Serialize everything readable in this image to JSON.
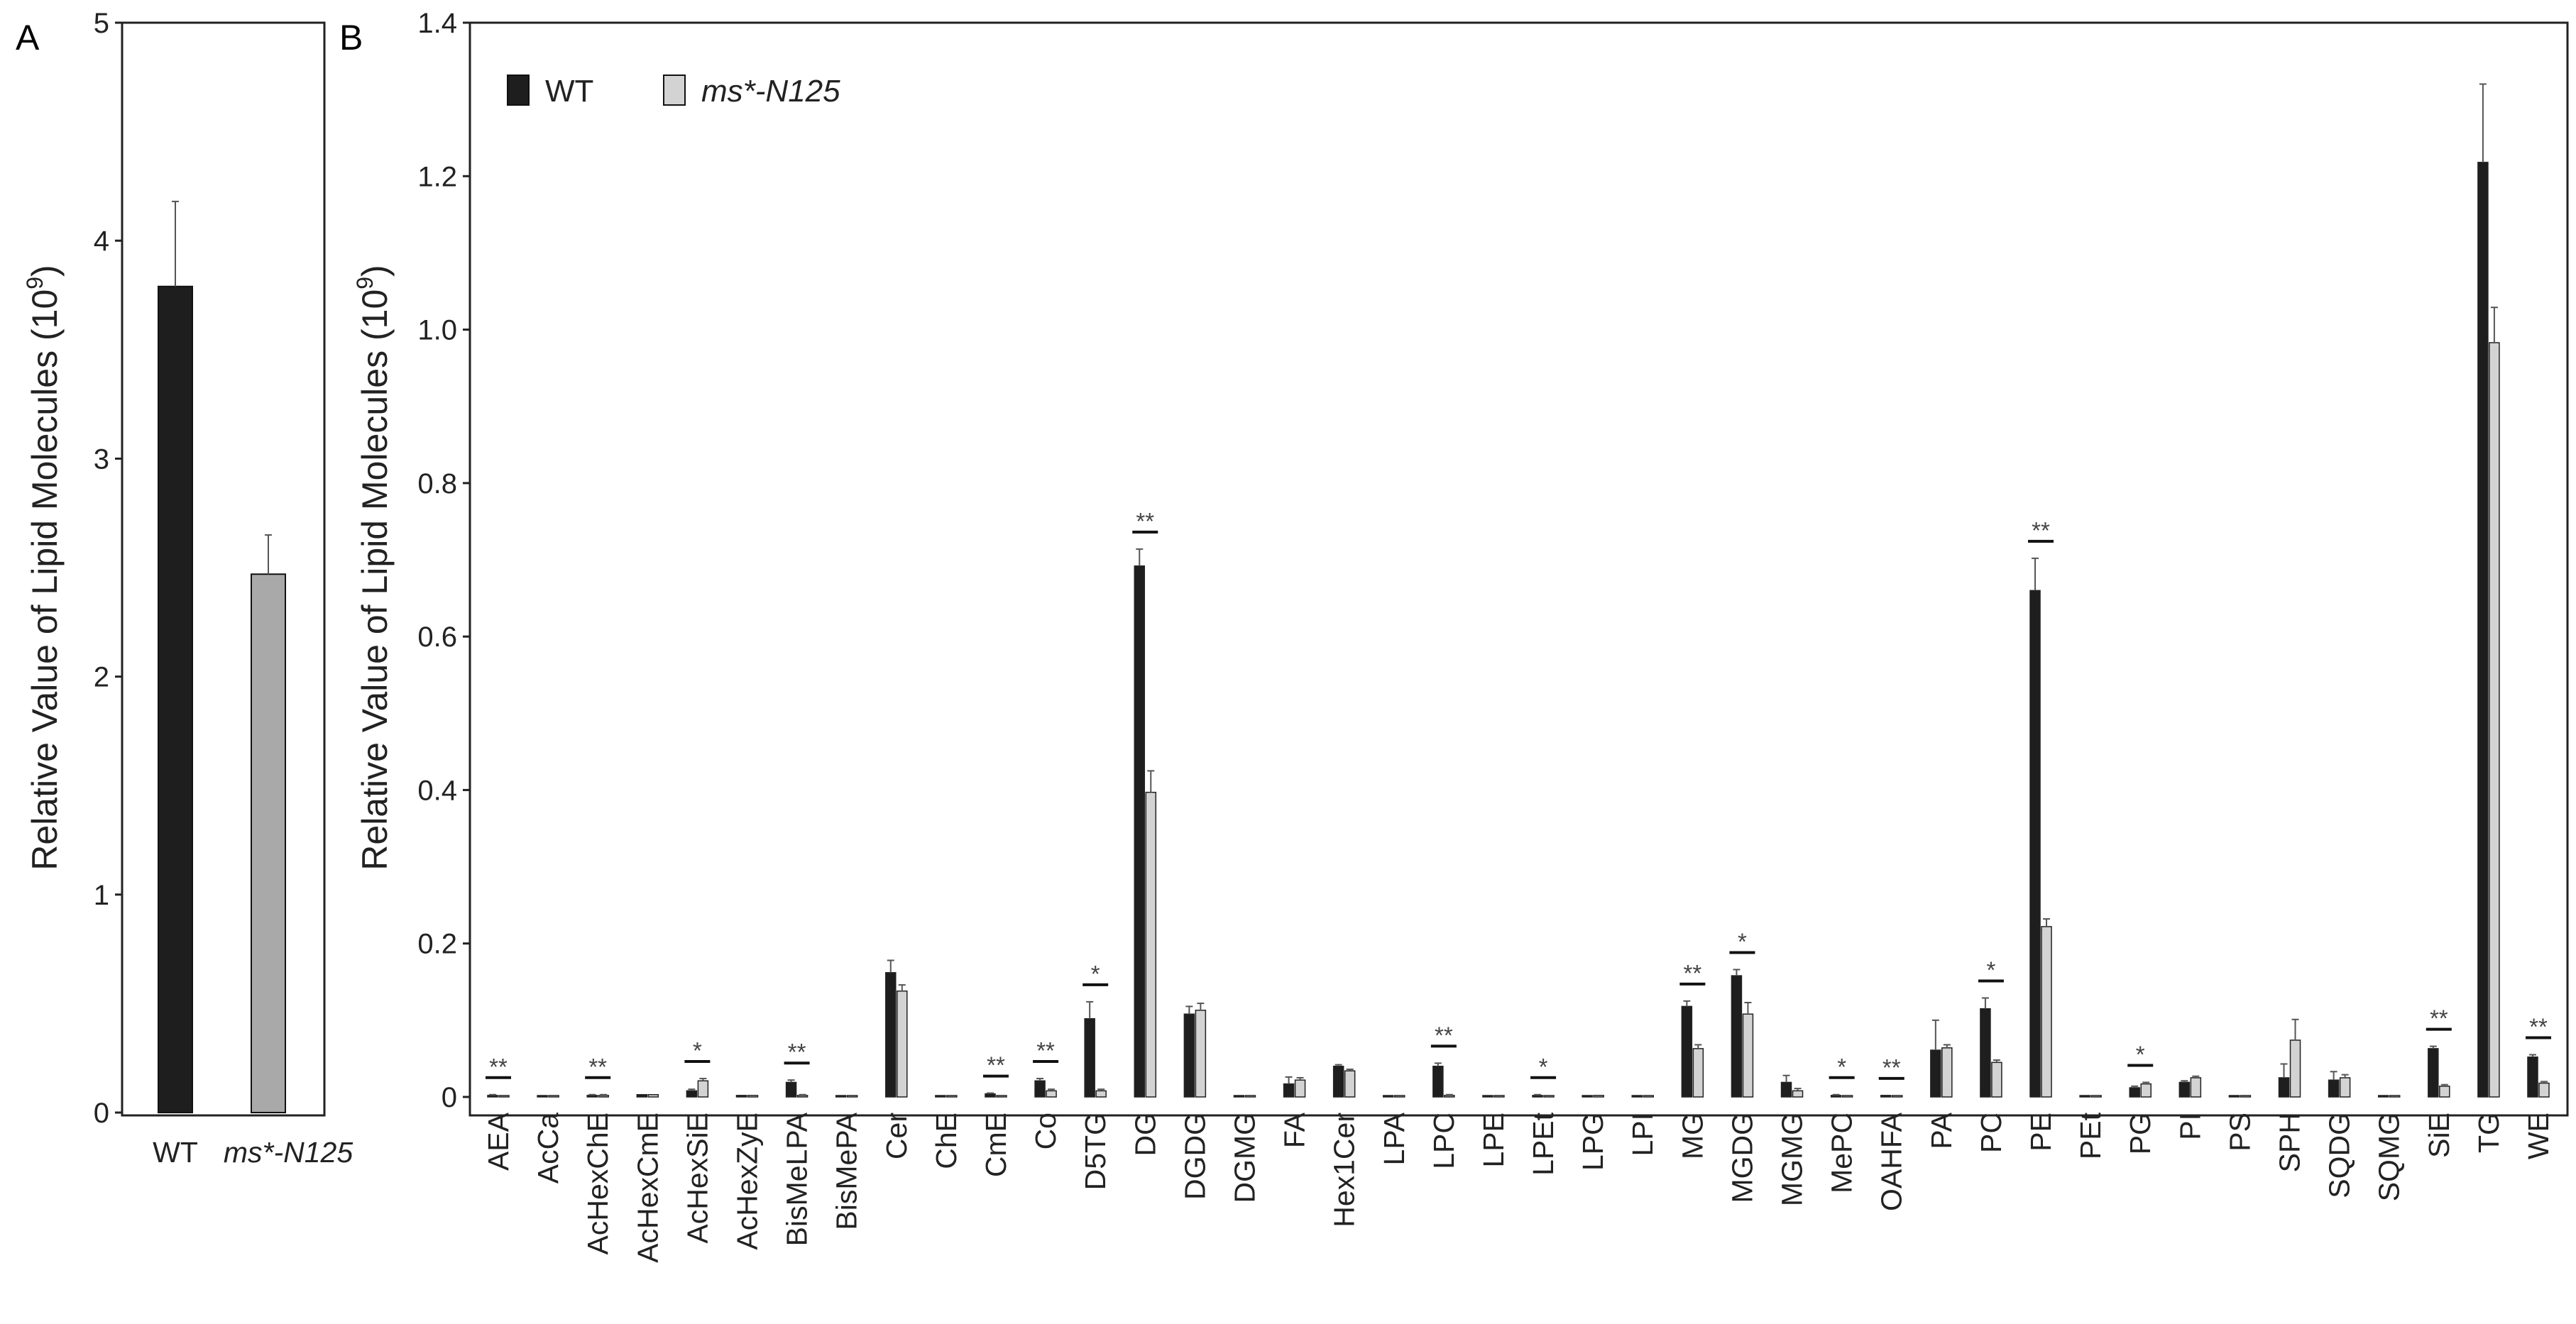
{
  "panels": {
    "a": {
      "letter": "A"
    },
    "b": {
      "letter": "B"
    }
  },
  "colors": {
    "wt": "#1e1e1e",
    "mutant_a": "#a9a9a9",
    "mutant_b": "#d3d3d3",
    "axis": "#222222",
    "error": "#555555"
  },
  "chart_data": [
    {
      "type": "bar",
      "panel": "A",
      "categories": [
        "WT",
        "ms*-N125"
      ],
      "values": [
        3.79,
        2.47
      ],
      "errors": [
        0.39,
        0.18
      ],
      "title": "",
      "xlabel": "",
      "ylabel": "Relative Value of Lipid Molecules (10",
      "ylabel_sup": "9",
      "ylabel_tail": ")",
      "ylim": [
        0,
        5
      ],
      "yticks": [
        "0",
        "1",
        "2",
        "3",
        "4",
        "5"
      ],
      "grid": false,
      "legend": "none"
    },
    {
      "type": "bar",
      "panel": "B",
      "categories": [
        "AEA",
        "AcCa",
        "AcHexChE",
        "AcHexCmE",
        "AcHexSiE",
        "AcHexZyE",
        "BisMeLPA",
        "BisMePA",
        "Cer",
        "ChE",
        "CmE",
        "Co",
        "D5TG",
        "DG",
        "DGDG",
        "DGMG",
        "FA",
        "Hex1Cer",
        "LPA",
        "LPC",
        "LPE",
        "LPEt",
        "LPG",
        "LPI",
        "MG",
        "MGDG",
        "MGMG",
        "MePC",
        "OAHFA",
        "PA",
        "PC",
        "PE",
        "PEt",
        "PG",
        "PI",
        "PS",
        "SPH",
        "SQDG",
        "SQMG",
        "SiE",
        "TG",
        "WE"
      ],
      "series": [
        {
          "name": "WT",
          "values": [
            0.002,
            0.001,
            0.002,
            0.003,
            0.008,
            0.002,
            0.019,
            0.001,
            0.162,
            0.001,
            0.004,
            0.021,
            0.102,
            0.692,
            0.108,
            0.001,
            0.017,
            0.04,
            0.001,
            0.04,
            0.001,
            0.002,
            0.001,
            0.001,
            0.118,
            0.158,
            0.019,
            0.002,
            0.002,
            0.061,
            0.115,
            0.66,
            0.001,
            0.012,
            0.019,
            0.001,
            0.025,
            0.022,
            0.001,
            0.063,
            1.218,
            0.052
          ],
          "errors": [
            0.001,
            0,
            0.001,
            0,
            0.002,
            0,
            0.003,
            0,
            0.016,
            0,
            0.001,
            0.003,
            0.022,
            0.022,
            0.01,
            0,
            0.009,
            0.002,
            0,
            0.004,
            0,
            0.001,
            0,
            0,
            0.007,
            0.008,
            0.009,
            0.001,
            0,
            0.039,
            0.014,
            0.042,
            0,
            0.002,
            0.002,
            0,
            0.018,
            0.011,
            0,
            0.003,
            0.102,
            0.003
          ]
        },
        {
          "name": "ms*-N125",
          "name_italic": true,
          "values": [
            0.001,
            0.001,
            0.002,
            0.003,
            0.021,
            0.002,
            0.002,
            0.001,
            0.138,
            0.001,
            0.001,
            0.008,
            0.008,
            0.397,
            0.113,
            0.001,
            0.022,
            0.034,
            0.001,
            0.002,
            0.001,
            0.001,
            0.002,
            0.001,
            0.063,
            0.108,
            0.008,
            0.001,
            0.001,
            0.064,
            0.045,
            0.222,
            0.001,
            0.017,
            0.025,
            0.001,
            0.074,
            0.025,
            0.001,
            0.014,
            0.983,
            0.018
          ],
          "errors": [
            0,
            0,
            0.001,
            0,
            0.003,
            0,
            0.001,
            0,
            0.008,
            0,
            0,
            0.002,
            0.002,
            0.028,
            0.009,
            0,
            0.003,
            0.002,
            0,
            0.001,
            0,
            0,
            0,
            0,
            0.005,
            0.015,
            0.003,
            0,
            0,
            0.004,
            0.003,
            0.01,
            0,
            0.002,
            0.002,
            0,
            0.027,
            0.004,
            0,
            0.002,
            0.046,
            0.002
          ]
        }
      ],
      "significance": [
        {
          "category": "AEA",
          "label": "**"
        },
        {
          "category": "AcHexChE",
          "label": "**"
        },
        {
          "category": "AcHexSiE",
          "label": "*"
        },
        {
          "category": "BisMeLPA",
          "label": "**"
        },
        {
          "category": "CmE",
          "label": "**"
        },
        {
          "category": "Co",
          "label": "**"
        },
        {
          "category": "D5TG",
          "label": "*"
        },
        {
          "category": "DG",
          "label": "**"
        },
        {
          "category": "LPC",
          "label": "**"
        },
        {
          "category": "LPEt",
          "label": "*"
        },
        {
          "category": "MG",
          "label": "**"
        },
        {
          "category": "MGDG",
          "label": "*"
        },
        {
          "category": "MePC",
          "label": "*"
        },
        {
          "category": "OAHFA",
          "label": "**"
        },
        {
          "category": "PC",
          "label": "*"
        },
        {
          "category": "PE",
          "label": "**"
        },
        {
          "category": "PG",
          "label": "*"
        },
        {
          "category": "SiE",
          "label": "**"
        },
        {
          "category": "WE",
          "label": "**"
        }
      ],
      "title": "",
      "xlabel": "",
      "ylabel": "Relative Value of Lipid Molecules (10",
      "ylabel_sup": "9",
      "ylabel_tail": ")",
      "ylim": [
        0,
        1.4
      ],
      "yticks": [
        "0",
        "0.2",
        "0.4",
        "0.6",
        "0.8",
        "1.0",
        "1.2",
        "1.4"
      ],
      "grid": false,
      "legend": "top-left"
    }
  ]
}
